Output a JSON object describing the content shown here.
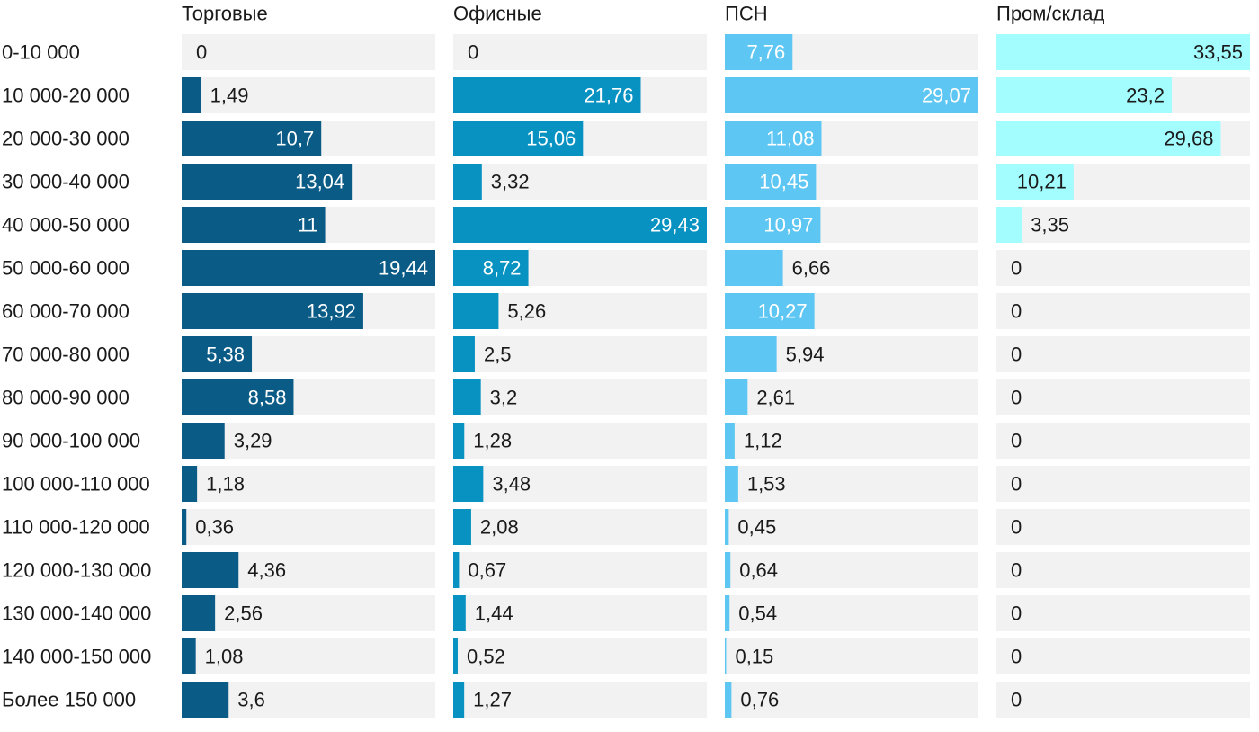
{
  "chart_data": {
    "type": "bar",
    "orientation": "horizontal",
    "grid": false,
    "legend": "none",
    "categories": [
      "0-10 000",
      "10 000-20 000",
      "20 000-30 000",
      "30 000-40 000",
      "40 000-50 000",
      "50 000-60 000",
      "60 000-70 000",
      "70 000-80 000",
      "80 000-90 000",
      "90 000-100 000",
      "100 000-110 000",
      "110 000-120 000",
      "120 000-130 000",
      "130 000-140 000",
      "140 000-150 000",
      "Более 150 000"
    ],
    "series": [
      {
        "name": "Торговые",
        "color": "#0a5b86",
        "labels": [
          "0",
          "1,49",
          "10,7",
          "13,04",
          "11",
          "19,44",
          "13,92",
          "5,38",
          "8,58",
          "3,29",
          "1,18",
          "0,36",
          "4,36",
          "2,56",
          "1,08",
          "3,6"
        ],
        "values": [
          0,
          1.49,
          10.7,
          13.04,
          11,
          19.44,
          13.92,
          5.38,
          8.58,
          3.29,
          1.18,
          0.36,
          4.36,
          2.56,
          1.08,
          3.6
        ],
        "xlim": [
          0,
          19.44
        ]
      },
      {
        "name": "Офисные",
        "color": "#0892c1",
        "labels": [
          "0",
          "21,76",
          "15,06",
          "3,32",
          "29,43",
          "8,72",
          "5,26",
          "2,5",
          "3,2",
          "1,28",
          "3,48",
          "2,08",
          "0,67",
          "1,44",
          "0,52",
          "1,27"
        ],
        "values": [
          0,
          21.76,
          15.06,
          3.32,
          29.43,
          8.72,
          5.26,
          2.5,
          3.2,
          1.28,
          3.48,
          2.08,
          0.67,
          1.44,
          0.52,
          1.27
        ],
        "xlim": [
          0,
          29.43
        ]
      },
      {
        "name": "ПСН",
        "color": "#5ec6f2",
        "labels": [
          "7,76",
          "29,07",
          "11,08",
          "10,45",
          "10,97",
          "6,66",
          "10,27",
          "5,94",
          "2,61",
          "1,12",
          "1,53",
          "0,45",
          "0,64",
          "0,54",
          "0,15",
          "0,76"
        ],
        "values": [
          7.76,
          29.07,
          11.08,
          10.45,
          10.97,
          6.66,
          10.27,
          5.94,
          2.61,
          1.12,
          1.53,
          0.45,
          0.64,
          0.54,
          0.15,
          0.76
        ],
        "xlim": [
          0,
          29.07
        ]
      },
      {
        "name": "Пром/склад",
        "color": "#a3fcfd",
        "labels": [
          "33,55",
          "23,2",
          "29,68",
          "10,21",
          "3,35",
          "0",
          "0",
          "0",
          "0",
          "0",
          "0",
          "0",
          "0",
          "0",
          "0",
          "0"
        ],
        "values": [
          33.55,
          23.2,
          29.68,
          10.21,
          3.35,
          0,
          0,
          0,
          0,
          0,
          0,
          0,
          0,
          0,
          0,
          0
        ],
        "xlim": [
          0,
          33.55
        ]
      }
    ]
  }
}
